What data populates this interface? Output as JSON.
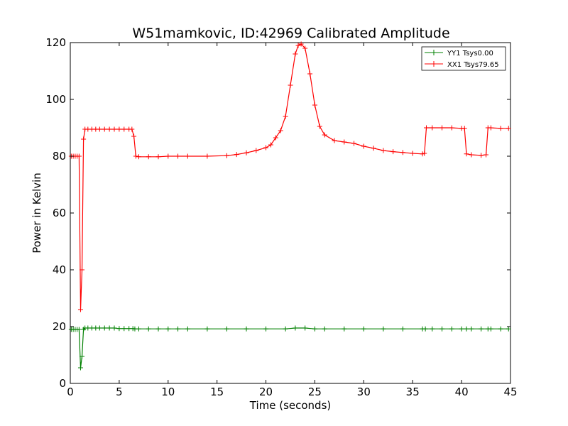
{
  "chart_data": {
    "type": "line",
    "title": "W51mamkovic, ID:42969 Calibrated Amplitude",
    "xlabel": "Time (seconds)",
    "ylabel": "Power in Kelvin",
    "xlim": [
      0,
      45
    ],
    "ylim": [
      0,
      120
    ],
    "xticks": [
      0,
      5,
      10,
      15,
      20,
      25,
      30,
      35,
      40,
      45
    ],
    "yticks": [
      0,
      20,
      40,
      60,
      80,
      100,
      120
    ],
    "grid": false,
    "legend_position": "top-right",
    "series": [
      {
        "name": "YY1 Tsys0.00",
        "color": "#008000",
        "marker": "+",
        "x": [
          0.1,
          0.3,
          0.5,
          0.7,
          0.9,
          1.05,
          1.2,
          1.35,
          1.5,
          1.8,
          2.2,
          2.6,
          3.0,
          3.5,
          4.0,
          4.5,
          5.0,
          5.5,
          6.0,
          6.4,
          6.6,
          7.0,
          8.0,
          9.0,
          10.0,
          11.0,
          12.0,
          14.0,
          16.0,
          18.0,
          20.0,
          22.0,
          23.0,
          24.0,
          25.0,
          26.0,
          28.0,
          30.0,
          32.0,
          34.0,
          36.0,
          36.3,
          37.0,
          38.0,
          39.0,
          40.0,
          40.5,
          41.0,
          42.0,
          42.7,
          43.0,
          44.0,
          44.8
        ],
        "y": [
          19.0,
          19.0,
          19.0,
          19.0,
          19.0,
          5.5,
          9.5,
          19.0,
          19.5,
          19.5,
          19.5,
          19.5,
          19.5,
          19.5,
          19.5,
          19.5,
          19.3,
          19.3,
          19.3,
          19.3,
          19.2,
          19.2,
          19.2,
          19.2,
          19.2,
          19.2,
          19.2,
          19.2,
          19.2,
          19.2,
          19.2,
          19.2,
          19.5,
          19.5,
          19.2,
          19.2,
          19.2,
          19.2,
          19.2,
          19.2,
          19.2,
          19.2,
          19.2,
          19.2,
          19.2,
          19.2,
          19.2,
          19.2,
          19.2,
          19.2,
          19.2,
          19.2,
          19.2
        ]
      },
      {
        "name": "XX1 Tsys79.65",
        "color": "#ff0000",
        "marker": "+",
        "x": [
          0.1,
          0.3,
          0.5,
          0.7,
          0.9,
          1.05,
          1.2,
          1.35,
          1.5,
          1.8,
          2.2,
          2.6,
          3.0,
          3.5,
          4.0,
          4.5,
          5.0,
          5.5,
          6.0,
          6.3,
          6.5,
          6.7,
          7.0,
          8.0,
          9.0,
          10.0,
          11.0,
          12.0,
          14.0,
          16.0,
          17.0,
          18.0,
          19.0,
          20.0,
          20.5,
          21.0,
          21.5,
          22.0,
          22.5,
          23.0,
          23.3,
          23.6,
          24.0,
          24.5,
          25.0,
          25.5,
          26.0,
          27.0,
          28.0,
          29.0,
          30.0,
          31.0,
          32.0,
          33.0,
          34.0,
          35.0,
          36.0,
          36.2,
          36.4,
          37.0,
          38.0,
          39.0,
          40.0,
          40.3,
          40.5,
          41.0,
          42.0,
          42.5,
          42.7,
          43.0,
          44.0,
          44.8
        ],
        "y": [
          80.0,
          80.0,
          80.0,
          80.0,
          80.0,
          26.0,
          40.0,
          86.0,
          89.5,
          89.5,
          89.5,
          89.5,
          89.5,
          89.5,
          89.5,
          89.5,
          89.5,
          89.5,
          89.5,
          89.5,
          87.0,
          80.0,
          79.8,
          79.8,
          79.8,
          80.0,
          80.0,
          80.0,
          80.0,
          80.2,
          80.6,
          81.2,
          82.0,
          83.0,
          84.0,
          86.5,
          89.0,
          94.0,
          105.0,
          116.0,
          119.0,
          119.5,
          118.0,
          109.0,
          98.0,
          90.5,
          87.5,
          85.5,
          85.0,
          84.5,
          83.5,
          82.8,
          82.0,
          81.6,
          81.3,
          81.0,
          80.8,
          81.0,
          90.0,
          90.0,
          90.0,
          90.0,
          89.8,
          89.8,
          80.8,
          80.5,
          80.3,
          80.5,
          90.0,
          90.0,
          89.8,
          89.8
        ]
      }
    ]
  }
}
